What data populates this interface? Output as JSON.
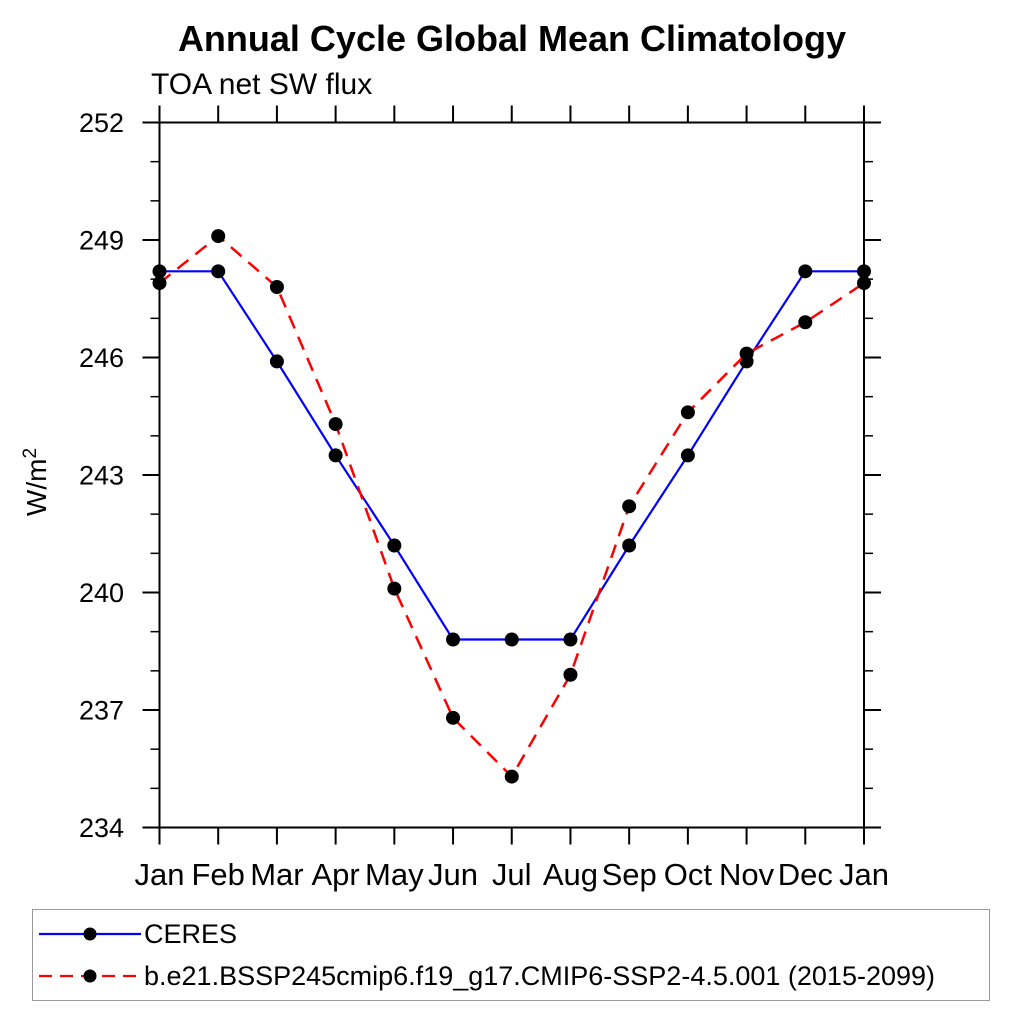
{
  "page": {
    "background": "#ffffff"
  },
  "chart_data": {
    "type": "line",
    "title": "Annual Cycle Global Mean Climatology",
    "subtitle": "TOA net SW flux",
    "ylabel": "W/m",
    "ylabel_superscript": "2",
    "x_categories": [
      "Jan",
      "Feb",
      "Mar",
      "Apr",
      "May",
      "Jun",
      "Jul",
      "Aug",
      "Sep",
      "Oct",
      "Nov",
      "Dec",
      "Jan"
    ],
    "ylim": [
      234,
      252
    ],
    "yticks_major": [
      234,
      237,
      240,
      243,
      246,
      249,
      252
    ],
    "ytick_minor_step": 1,
    "grid": false,
    "axis_color": "#000000",
    "marker_color": "#000000",
    "legend_position": "bottom-left-box",
    "series": [
      {
        "name": "CERES",
        "color": "#0000ff",
        "line_style": "solid",
        "marker": "circle",
        "values": [
          248.2,
          248.2,
          245.9,
          243.5,
          241.2,
          238.8,
          238.8,
          238.8,
          241.2,
          243.5,
          245.9,
          248.2,
          248.2
        ]
      },
      {
        "name": "b.e21.BSSP245cmip6.f19_g17.CMIP6-SSP2-4.5.001 (2015-2099)",
        "color": "#ff0000",
        "line_style": "dashed",
        "marker": "circle",
        "values": [
          247.9,
          249.1,
          247.8,
          244.3,
          240.1,
          236.8,
          235.3,
          237.9,
          242.2,
          244.6,
          246.1,
          246.9,
          247.9
        ]
      }
    ]
  }
}
